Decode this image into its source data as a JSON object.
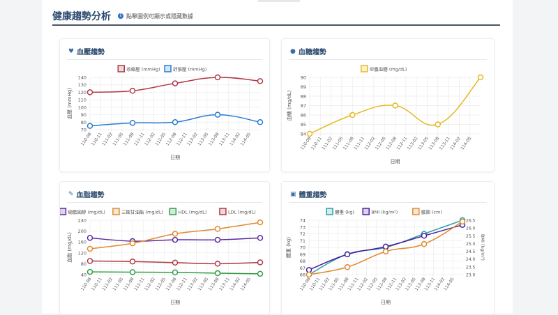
{
  "header": {
    "title": "健康趨勢分析",
    "note": "點擊圖例可顯示或隱藏數據"
  },
  "cards": [
    {
      "title": "血壓趨勢",
      "icon": "heart-pulse-icon",
      "glyph": "♥"
    },
    {
      "title": "血糖趨勢",
      "icon": "droplet-icon",
      "glyph": "💧"
    },
    {
      "title": "血脂趨勢",
      "icon": "syringe-icon",
      "glyph": "✎"
    },
    {
      "title": "體重趨勢",
      "icon": "scale-icon",
      "glyph": "▣"
    }
  ],
  "chart_data": [
    {
      "type": "line",
      "xlabel": "日期",
      "ylabel": "血壓 (mmHg)",
      "ylim": [
        70,
        140
      ],
      "yticks": [
        70,
        80,
        90,
        100,
        110,
        120,
        130,
        140
      ],
      "grid": true,
      "legend": "top",
      "x": [
        "110-08",
        "111-08",
        "112-08",
        "113-08",
        "114-08"
      ],
      "xticks": [
        "110-08",
        "110-11",
        "111-02",
        "111-05",
        "111-08",
        "111-11",
        "112-02",
        "112-05",
        "112-08",
        "112-11",
        "113-02",
        "113-05",
        "113-08",
        "113-11",
        "114-02",
        "114-05"
      ],
      "series": [
        {
          "name": "收縮壓 (mmHg)",
          "color": "#b03a48",
          "values": [
            120,
            122,
            132,
            140,
            135
          ]
        },
        {
          "name": "舒張壓 (mmHg)",
          "color": "#2a7bd1",
          "values": [
            75,
            79,
            80,
            90,
            80
          ]
        }
      ]
    },
    {
      "type": "line",
      "xlabel": "日期",
      "ylabel": "血糖 (mg/dL)",
      "ylim": [
        84,
        90
      ],
      "yticks": [
        84,
        85,
        86,
        87,
        88,
        89,
        90
      ],
      "grid": true,
      "legend": "top",
      "x": [
        "110-08",
        "111-08",
        "112-08",
        "113-08",
        "114-08"
      ],
      "xticks": [
        "110-08",
        "110-11",
        "111-02",
        "111-05",
        "111-08",
        "111-11",
        "112-02",
        "112-05",
        "112-08",
        "112-11",
        "113-02",
        "113-05",
        "113-08",
        "113-11",
        "114-02",
        "114-05"
      ],
      "series": [
        {
          "name": "空腹血糖 (mg/dL)",
          "color": "#e6b91e",
          "values": [
            84,
            86,
            87,
            85,
            90
          ]
        }
      ]
    },
    {
      "type": "line",
      "xlabel": "日期",
      "ylabel": "血脂 (mg/dL)",
      "ylim": [
        40,
        240
      ],
      "yticks": [
        40,
        80,
        120,
        160,
        200,
        240
      ],
      "grid": true,
      "legend": "top",
      "x": [
        "110-08",
        "111-08",
        "112-08",
        "113-08",
        "114-08"
      ],
      "xticks": [
        "110-08",
        "110-11",
        "111-02",
        "111-05",
        "111-08",
        "111-11",
        "112-02",
        "112-05",
        "112-08",
        "112-11",
        "113-02",
        "113-05",
        "113-08",
        "113-11",
        "114-02",
        "114-05"
      ],
      "series": [
        {
          "name": "總膽固醇 (mg/dL)",
          "color": "#5b2ca0",
          "values": [
            175,
            163,
            168,
            168,
            175
          ]
        },
        {
          "name": "三酸甘油酯 (mg/dL)",
          "color": "#e08a2e",
          "values": [
            135,
            155,
            190,
            208,
            232
          ]
        },
        {
          "name": "HDL (mg/dL)",
          "color": "#2e9e44",
          "values": [
            50,
            49,
            48,
            45,
            43
          ]
        },
        {
          "name": "LDL (mg/dL)",
          "color": "#b03a48",
          "values": [
            90,
            88,
            84,
            80,
            85
          ]
        }
      ]
    },
    {
      "type": "line",
      "xlabel": "日期",
      "ylabel": "體重 (kg)",
      "y2label": "BMI (kg/m²)",
      "ylim": [
        66,
        74
      ],
      "yticks": [
        66,
        67,
        68,
        69,
        70,
        71,
        72,
        73,
        74
      ],
      "y2lim": [
        23.0,
        26.5
      ],
      "y2ticks": [
        "23.0",
        "23.5",
        "24.0",
        "24.5",
        "25.0",
        "25.5",
        "26.0",
        "26.5"
      ],
      "grid": true,
      "legend": "top",
      "x": [
        "110-08",
        "111-08",
        "112-08",
        "113-08",
        "114-08"
      ],
      "xticks": [
        "110-08",
        "110-11",
        "111-02",
        "111-05",
        "111-08",
        "111-11",
        "112-02",
        "112-05",
        "112-08",
        "112-11",
        "113-02",
        "113-05",
        "113-08",
        "113-11",
        "114-02",
        "114-05"
      ],
      "series": [
        {
          "name": "體重 (kg)",
          "color": "#2aa0a8",
          "axis": "y",
          "values": [
            66,
            69,
            70,
            72,
            74
          ]
        },
        {
          "name": "BMI (kg/m²)",
          "color": "#4b1fa0",
          "axis": "y2",
          "values": [
            23.3,
            24.3,
            24.8,
            25.5,
            26.2
          ]
        },
        {
          "name": "腰圍 (cm)",
          "color": "#e08a2e",
          "axis": "hidden",
          "values": [
            66,
            67.1,
            69.4,
            70.5,
            73.8
          ]
        }
      ]
    }
  ]
}
